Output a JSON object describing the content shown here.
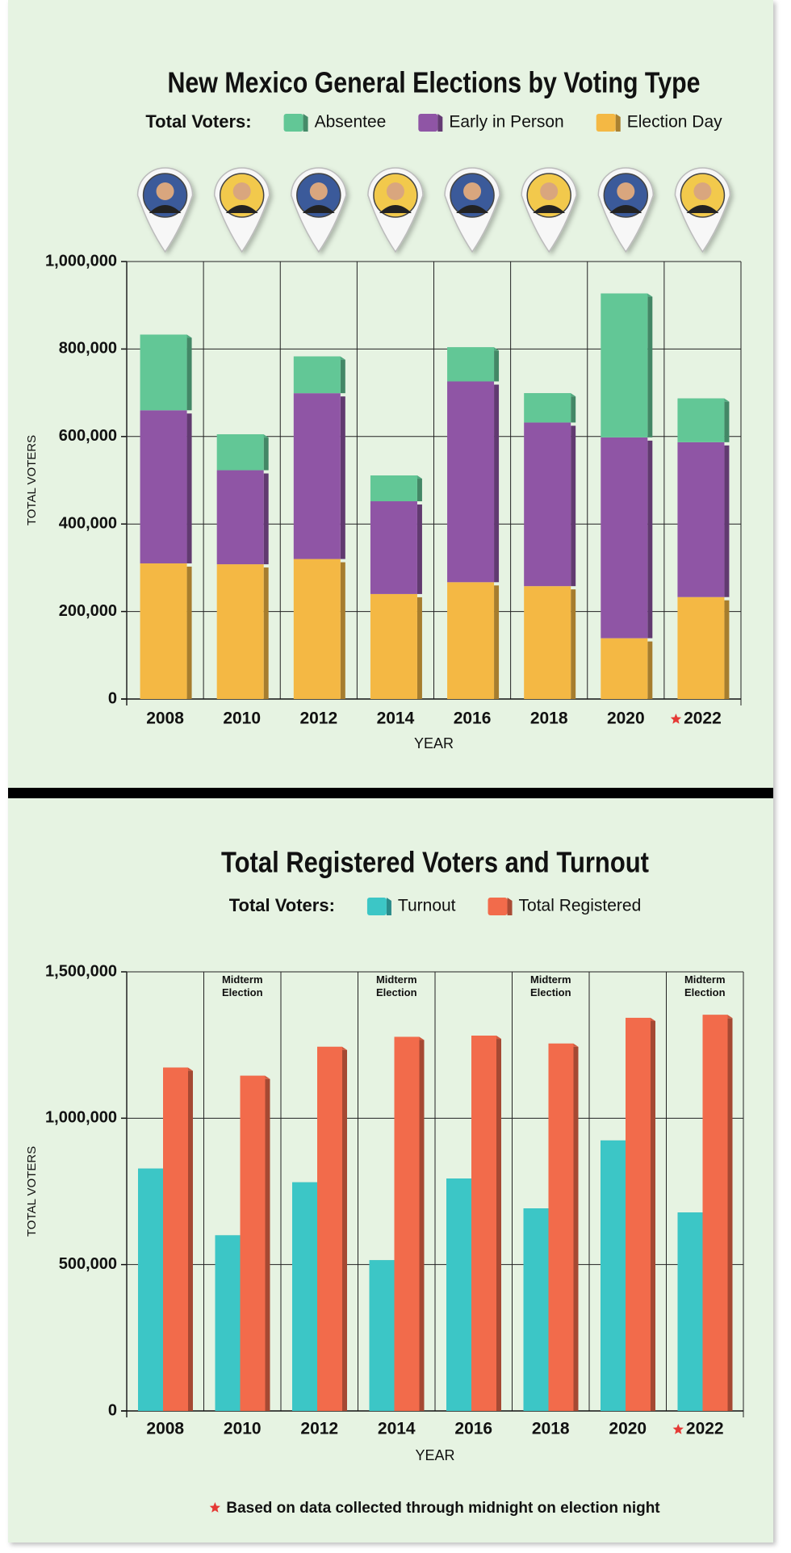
{
  "chart_data": [
    {
      "type": "bar",
      "stacked": true,
      "title": "New Mexico General Elections by Voting Type",
      "legend_title": "Total Voters:",
      "y_label": "TOTAL VOTERS",
      "x_label": "YEAR",
      "categories": [
        "2008",
        "2010",
        "2012",
        "2014",
        "2016",
        "2018",
        "2020",
        "2022"
      ],
      "series": [
        {
          "name": "Absentee",
          "color": "#62c796",
          "values": [
            173000,
            82000,
            84000,
            59000,
            78000,
            67000,
            329000,
            100000
          ]
        },
        {
          "name": "Early in Person",
          "color": "#8f55a5",
          "values": [
            350000,
            215000,
            379000,
            212000,
            459000,
            374000,
            459000,
            354000
          ]
        },
        {
          "name": "Election Day",
          "color": "#f4b844",
          "values": [
            310000,
            308000,
            320000,
            240000,
            267000,
            258000,
            139000,
            233000
          ]
        }
      ],
      "ylim": [
        0,
        1000000
      ],
      "yticks": [
        0,
        {
          "value": 200000,
          "label": "200,000"
        },
        {
          "value": 400000,
          "label": "400,000"
        },
        {
          "value": 600000,
          "label": "600,000"
        },
        {
          "value": 800000,
          "label": "800,000"
        },
        {
          "value": 1000000,
          "label": "1,000,000"
        }
      ],
      "grid": true
    },
    {
      "type": "bar",
      "stacked": false,
      "title": "Total Registered  Voters and Turnout",
      "legend_title": "Total Voters:",
      "y_label": "TOTAL VOTERS",
      "x_label": "YEAR",
      "categories": [
        "2008",
        "2010",
        "2012",
        "2014",
        "2016",
        "2018",
        "2020",
        "2022"
      ],
      "series": [
        {
          "name": "Turnout",
          "color": "#3cc6c6",
          "values": [
            828000,
            600000,
            781000,
            515000,
            794000,
            692000,
            924000,
            678000
          ]
        },
        {
          "name": "Total Registered",
          "color": "#f26b4b",
          "values": [
            1173000,
            1145000,
            1244000,
            1278000,
            1282000,
            1255000,
            1343000,
            1353000
          ]
        }
      ],
      "ylim": [
        0,
        1500000
      ],
      "yticks": [
        0,
        {
          "value": 500000,
          "label": "500,000"
        },
        {
          "value": 1000000,
          "label": "1,000,000"
        },
        {
          "value": 1500000,
          "label": "1,500,000"
        }
      ],
      "grid": true,
      "annotations": [
        {
          "x": "2010",
          "text": "Midterm Election"
        },
        {
          "x": "2014",
          "text": "Midterm Election"
        },
        {
          "x": "2018",
          "text": "Midterm Election"
        },
        {
          "x": "2022",
          "text": "Midterm Election"
        }
      ],
      "footnote": "Based on data collected through midnight on election night"
    }
  ]
}
